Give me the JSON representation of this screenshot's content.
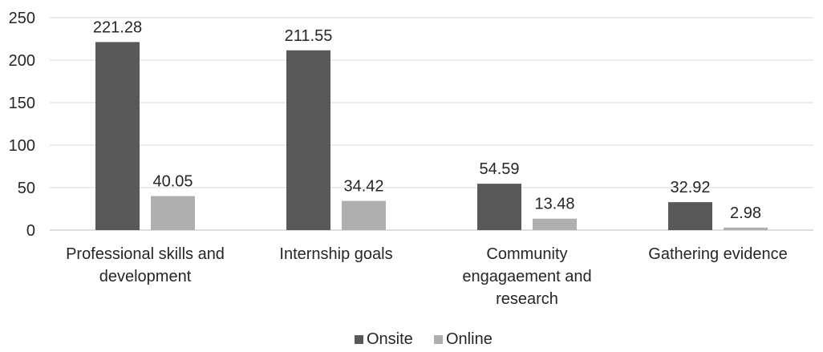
{
  "chart_data": {
    "type": "bar",
    "title": "",
    "xlabel": "",
    "ylabel": "",
    "categories": [
      [
        "Professional skills and",
        "development"
      ],
      [
        "Internship goals"
      ],
      [
        "Community",
        "engagaement and",
        "research"
      ],
      [
        "Gathering evidence"
      ]
    ],
    "series": [
      {
        "name": "Onsite",
        "color": "#595959",
        "values": [
          221.28,
          211.55,
          54.59,
          32.92
        ],
        "labels": [
          "221.28",
          "211.55",
          "54.59",
          "32.92"
        ]
      },
      {
        "name": "Online",
        "color": "#afafaf",
        "values": [
          40.05,
          34.42,
          13.48,
          2.98
        ],
        "labels": [
          "40.05",
          "34.42",
          "13.48",
          "2.98"
        ]
      }
    ],
    "ylim": [
      0,
      250
    ],
    "yticks": [
      0,
      50,
      100,
      150,
      200,
      250
    ],
    "grid": true,
    "legend_position": "bottom-center"
  }
}
